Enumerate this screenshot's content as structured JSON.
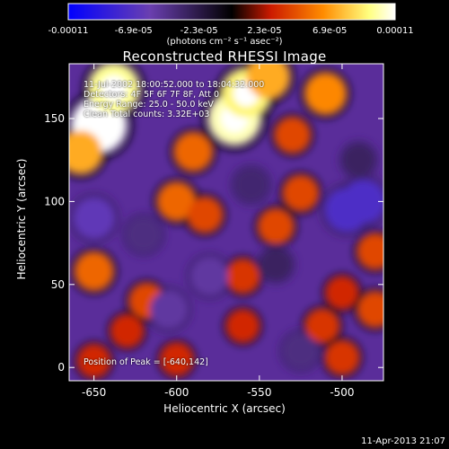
{
  "colorbar": {
    "tick_labels": [
      "-0.00011",
      "-6.9e-05",
      "-2.3e-05",
      "2.3e-05",
      "6.9e-05",
      "0.00011"
    ],
    "units": "(photons cm⁻² s⁻¹ asec⁻²)",
    "colors": [
      "#0000ff",
      "#6a3fb0",
      "#000000",
      "#cc1a00",
      "#ff8c00",
      "#ffff80",
      "#ffffff"
    ]
  },
  "header": {
    "title": "Reconstructed RHESSI Image",
    "time_range": "11-Jul-2002 18:00:52.000 to 18:04:32.000",
    "detectors": "Detectors: 4F 5F 6F 7F 8F, Att 0",
    "energy": "Energy Range: 25.0 - 50.0 keV",
    "method": "Clean    Total counts: 3.32E+03"
  },
  "footer": {
    "peak": "Position of Peak = [-640,142]",
    "timestamp": "11-Apr-2013 21:07"
  },
  "chart_data": {
    "type": "heatmap",
    "title": "Reconstructed RHESSI Image",
    "xlabel": "Heliocentric X (arcsec)",
    "ylabel": "Heliocentric Y (arcsec)",
    "xlim": [
      -665,
      -475
    ],
    "ylim": [
      -8,
      183
    ],
    "xticks": [
      -650,
      -600,
      -550,
      -500
    ],
    "yticks": [
      0,
      50,
      100,
      150
    ],
    "xtick_labels": [
      "-650",
      "-600",
      "-550",
      "-500"
    ],
    "ytick_labels": [
      "0",
      "50",
      "100",
      "150"
    ],
    "zlim": [
      -0.00011,
      0.00011
    ],
    "peak": [
      -640,
      142
    ],
    "sources": [
      {
        "x": -647,
        "y": 146,
        "value": 0.00011
      },
      {
        "x": -638,
        "y": 168,
        "value": 9.5e-05
      },
      {
        "x": -658,
        "y": 130,
        "value": 7e-05
      },
      {
        "x": -565,
        "y": 150,
        "value": 0.0001
      },
      {
        "x": -558,
        "y": 165,
        "value": 9e-05
      },
      {
        "x": -545,
        "y": 175,
        "value": 7e-05
      },
      {
        "x": -510,
        "y": 165,
        "value": 6e-05
      },
      {
        "x": -590,
        "y": 130,
        "value": 5e-05
      },
      {
        "x": -530,
        "y": 140,
        "value": 4e-05
      },
      {
        "x": -600,
        "y": 100,
        "value": 5e-05
      },
      {
        "x": -583,
        "y": 92,
        "value": 4e-05
      },
      {
        "x": -540,
        "y": 85,
        "value": 4e-05
      },
      {
        "x": -525,
        "y": 105,
        "value": 4e-05
      },
      {
        "x": -480,
        "y": 70,
        "value": 4e-05
      },
      {
        "x": -650,
        "y": 58,
        "value": 5e-05
      },
      {
        "x": -618,
        "y": 40,
        "value": 4e-05
      },
      {
        "x": -560,
        "y": 55,
        "value": 3.5e-05
      },
      {
        "x": -500,
        "y": 45,
        "value": 3e-05
      },
      {
        "x": -630,
        "y": 22,
        "value": 3e-05
      },
      {
        "x": -560,
        "y": 25,
        "value": 3e-05
      },
      {
        "x": -512,
        "y": 25,
        "value": 3.5e-05
      },
      {
        "x": -480,
        "y": 35,
        "value": 4e-05
      },
      {
        "x": -500,
        "y": 6,
        "value": 3.5e-05
      },
      {
        "x": -650,
        "y": 4,
        "value": 3e-05
      },
      {
        "x": -600,
        "y": 5,
        "value": 3e-05
      },
      {
        "x": -620,
        "y": 80,
        "value": -4e-05
      },
      {
        "x": -650,
        "y": 90,
        "value": -6e-05
      },
      {
        "x": -605,
        "y": 35,
        "value": -5e-05
      },
      {
        "x": -580,
        "y": 55,
        "value": -5e-05
      },
      {
        "x": -497,
        "y": 95,
        "value": -7e-05
      },
      {
        "x": -487,
        "y": 100,
        "value": -7e-05
      },
      {
        "x": -525,
        "y": 10,
        "value": -4e-05
      },
      {
        "x": -555,
        "y": 110,
        "value": -3.5e-05
      },
      {
        "x": -540,
        "y": 62,
        "value": -3e-05
      },
      {
        "x": -490,
        "y": 125,
        "value": -3e-05
      }
    ]
  }
}
